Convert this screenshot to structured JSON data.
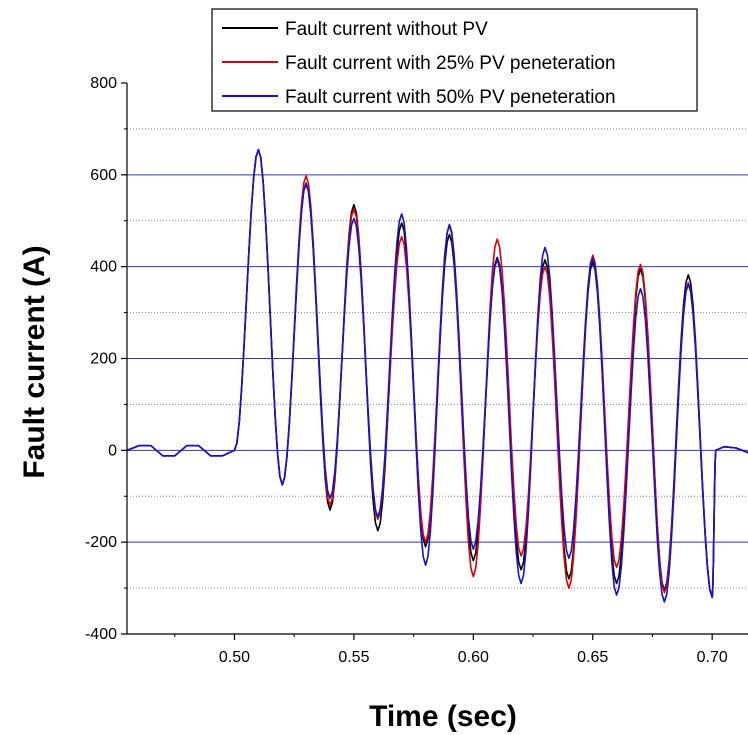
{
  "chart_data": {
    "type": "line",
    "xlabel": "Time (sec)",
    "ylabel": "Fault current (A)",
    "xlim": [
      0.455,
      0.715
    ],
    "ylim": [
      -400,
      800
    ],
    "x_ticks": [
      0.5,
      0.55,
      0.6,
      0.65,
      0.7
    ],
    "x_tick_labels": [
      "0.50",
      "0.55",
      "0.60",
      "0.65",
      "0.70"
    ],
    "y_ticks": [
      -400,
      -200,
      0,
      200,
      400,
      600,
      800
    ],
    "y_tick_labels": [
      "-400",
      "-200",
      "0",
      "200",
      "400",
      "600",
      "800"
    ],
    "grid": {
      "major_y": [
        -200,
        0,
        200,
        400,
        600
      ],
      "major_color": "#3333cc",
      "minor_y": [
        -300,
        -100,
        100,
        300,
        500,
        700
      ],
      "minor_color": "#888888"
    },
    "legend_position": "top-right",
    "fault_start": 0.5,
    "pre_fault": {
      "x": [
        0.455,
        0.46,
        0.465,
        0.47,
        0.475,
        0.48,
        0.485,
        0.49,
        0.495,
        0.5
      ],
      "y": [
        0,
        10,
        10,
        -12,
        -12,
        10,
        10,
        -12,
        -12,
        0
      ]
    },
    "post_fault": {
      "x": [
        0.7015,
        0.705,
        0.71,
        0.715
      ],
      "y": [
        0,
        8,
        5,
        -5
      ]
    },
    "series": [
      {
        "name": "Fault current without PV",
        "color": "#000000",
        "peak_times": [
          0.51,
          0.53,
          0.55,
          0.57,
          0.59,
          0.61,
          0.63,
          0.65,
          0.67,
          0.69
        ],
        "peaks": [
          655,
          582,
          535,
          495,
          470,
          420,
          415,
          410,
          395,
          382
        ],
        "trough_times": [
          0.52,
          0.54,
          0.56,
          0.58,
          0.6,
          0.62,
          0.64,
          0.66,
          0.68,
          0.7
        ],
        "troughs": [
          -75,
          -130,
          -175,
          -210,
          -240,
          -260,
          -280,
          -290,
          -305,
          -320
        ]
      },
      {
        "name": "Fault current with 25% PV peneteration",
        "color": "#e00000",
        "peak_times": [
          0.51,
          0.53,
          0.55,
          0.57,
          0.59,
          0.61,
          0.63,
          0.65,
          0.67,
          0.69
        ],
        "peaks": [
          655,
          598,
          525,
          465,
          490,
          460,
          400,
          425,
          405,
          365
        ],
        "trough_times": [
          0.52,
          0.54,
          0.56,
          0.58,
          0.6,
          0.62,
          0.64,
          0.66,
          0.68,
          0.7
        ],
        "troughs": [
          -75,
          -120,
          -150,
          -200,
          -275,
          -230,
          -300,
          -255,
          -310,
          -320
        ]
      },
      {
        "name": "Fault current with 50% PV peneteration",
        "color": "#1010e0",
        "peak_times": [
          0.51,
          0.53,
          0.55,
          0.57,
          0.59,
          0.61,
          0.63,
          0.65,
          0.67,
          0.69
        ],
        "peaks": [
          655,
          580,
          505,
          515,
          492,
          415,
          442,
          418,
          352,
          362
        ],
        "trough_times": [
          0.52,
          0.54,
          0.56,
          0.58,
          0.6,
          0.62,
          0.64,
          0.66,
          0.68,
          0.7
        ],
        "troughs": [
          -75,
          -105,
          -145,
          -250,
          -215,
          -290,
          -235,
          -315,
          -330,
          -320
        ]
      }
    ]
  }
}
